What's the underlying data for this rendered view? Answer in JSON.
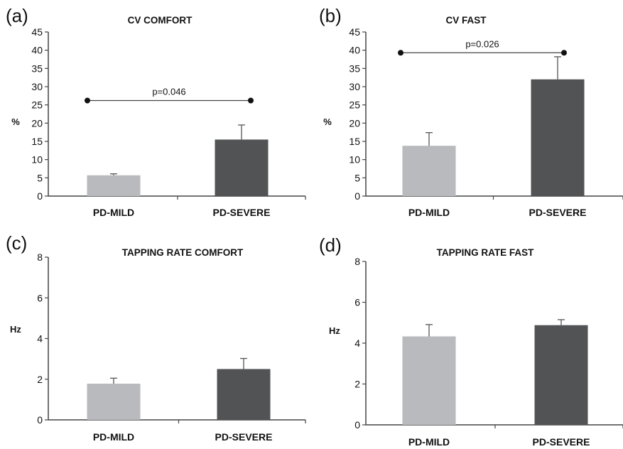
{
  "chart_data": [
    {
      "type": "bar",
      "panel": "(a)",
      "title": "CV COMFORT",
      "ylabel": "%",
      "categories": [
        "PD-MILD",
        "PD-SEVERE"
      ],
      "values": [
        5.7,
        15.5
      ],
      "error": [
        0.4,
        4.0
      ],
      "colors": [
        "#b8babd",
        "#525355"
      ],
      "ylim": [
        0,
        45
      ],
      "yticks": [
        0,
        5,
        10,
        15,
        20,
        25,
        30,
        35,
        40,
        45
      ],
      "significance": {
        "label": "p=0.046",
        "y": 26.2
      },
      "grid": false
    },
    {
      "type": "bar",
      "panel": "(b)",
      "title": "CV FAST",
      "ylabel": "%",
      "categories": [
        "PD-MILD",
        "PD-SEVERE"
      ],
      "values": [
        13.8,
        32.0
      ],
      "error": [
        3.6,
        6.2
      ],
      "colors": [
        "#b8babd",
        "#525355"
      ],
      "ylim": [
        0,
        45
      ],
      "yticks": [
        0,
        5,
        10,
        15,
        20,
        25,
        30,
        35,
        40,
        45
      ],
      "significance": {
        "label": "p=0.026",
        "y": 39.3
      },
      "grid": false
    },
    {
      "type": "bar",
      "panel": "(c)",
      "title": "TAPPING RATE COMFORT",
      "ylabel": "Hz",
      "categories": [
        "PD-MILD",
        "PD-SEVERE"
      ],
      "values": [
        1.78,
        2.5
      ],
      "error": [
        0.27,
        0.52
      ],
      "colors": [
        "#b8babd",
        "#525355"
      ],
      "ylim": [
        0,
        8
      ],
      "yticks": [
        0,
        2,
        4,
        6,
        8
      ],
      "grid": false
    },
    {
      "type": "bar",
      "panel": "(d)",
      "title": "TAPPING RATE FAST",
      "ylabel": "Hz",
      "categories": [
        "PD-MILD",
        "PD-SEVERE"
      ],
      "values": [
        4.33,
        4.88
      ],
      "error": [
        0.58,
        0.27
      ],
      "colors": [
        "#b8babd",
        "#525355"
      ],
      "ylim": [
        0,
        8
      ],
      "yticks": [
        0,
        2,
        4,
        6,
        8
      ],
      "grid": false
    }
  ]
}
